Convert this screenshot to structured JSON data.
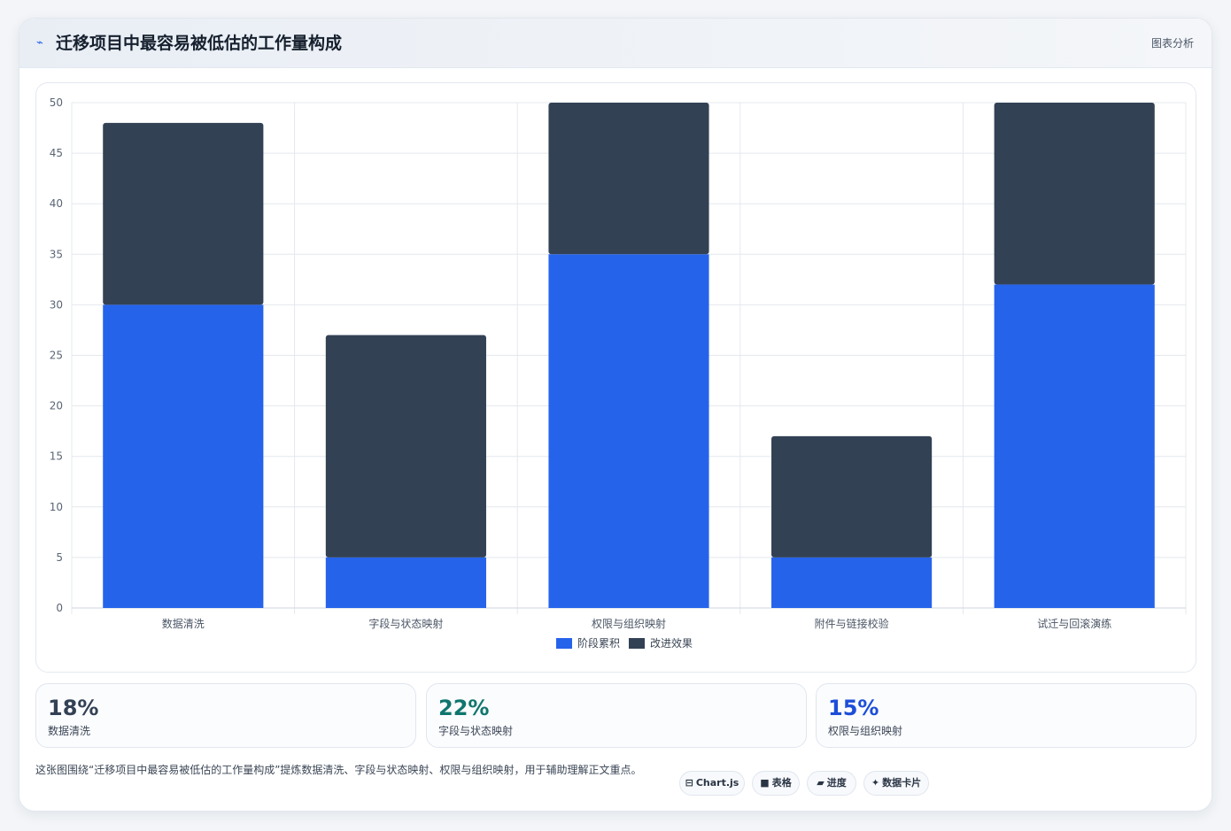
{
  "header": {
    "icon": "pulse-icon",
    "title": "迁移项目中最容易被低估的工作量构成",
    "tag": "图表分析"
  },
  "chart_data": {
    "type": "bar",
    "stacked": true,
    "categories": [
      "数据清洗",
      "字段与状态映射",
      "权限与组织映射",
      "附件与链接校验",
      "试迁与回滚演练"
    ],
    "series": [
      {
        "name": "阶段累积",
        "color": "#2563eb",
        "values": [
          30,
          5,
          35,
          5,
          32
        ]
      },
      {
        "name": "改进效果",
        "color": "#334155",
        "values": [
          18,
          22,
          15,
          12,
          18
        ]
      }
    ],
    "ylim": [
      0,
      50
    ],
    "yticks": [
      0,
      5,
      10,
      15,
      20,
      25,
      30,
      35,
      40,
      45,
      50
    ],
    "grid": true,
    "legend_position": "bottom"
  },
  "stats": [
    {
      "value": "18%",
      "label": "数据清洗",
      "color": "#334155"
    },
    {
      "value": "22%",
      "label": "字段与状态映射",
      "color": "#0f766e"
    },
    {
      "value": "15%",
      "label": "权限与组织映射",
      "color": "#1d4ed8"
    }
  ],
  "description": "这张图围绕“迁移项目中最容易被低估的工作量构成”提炼数据清洗、字段与状态映射、权限与组织映射，用于辅助理解正文重点。",
  "chips": [
    {
      "icon": "chart-icon",
      "glyph": "⊟",
      "label": "Chart.js"
    },
    {
      "icon": "table-icon",
      "glyph": "■",
      "label": "表格"
    },
    {
      "icon": "progress-icon",
      "glyph": "▰",
      "label": "进度"
    },
    {
      "icon": "spark-icon",
      "glyph": "✦",
      "label": "数据卡片"
    }
  ]
}
